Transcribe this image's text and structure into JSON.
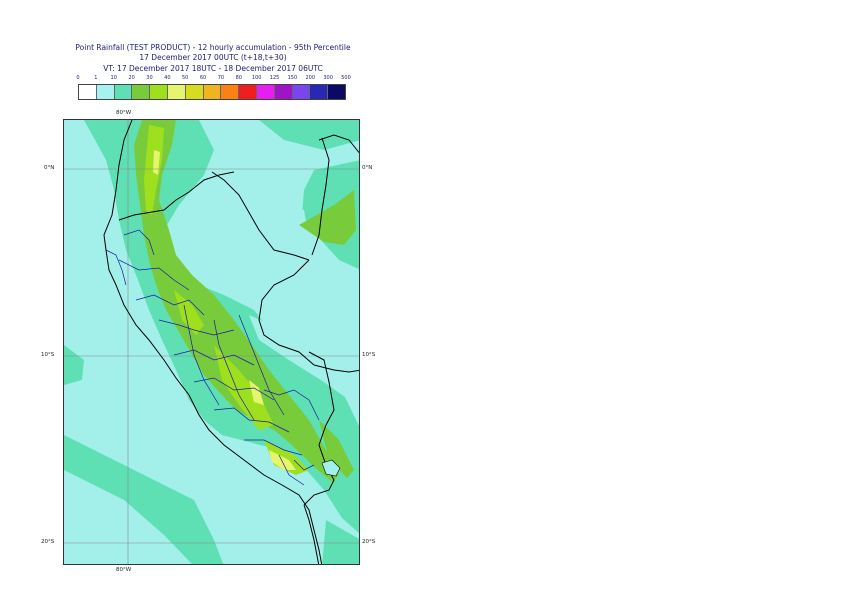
{
  "title": {
    "line1": "Point Rainfall (TEST PRODUCT) - 12 hourly accumulation - 95th Percentile",
    "line2": "17 December 2017 00UTC (t+18,t+30)",
    "line3": "VT: 17 December 2017 18UTC - 18 December 2017 06UTC"
  },
  "legend": {
    "thresholds": [
      "0",
      "1",
      "10",
      "20",
      "30",
      "40",
      "50",
      "60",
      "70",
      "80",
      "100",
      "125",
      "150",
      "200",
      "300",
      "500"
    ],
    "colors": [
      "#ffffff",
      "#a6f2f0",
      "#5fe0b4",
      "#78cc3c",
      "#9ee01e",
      "#e6f56e",
      "#d8dc1e",
      "#f0b41e",
      "#fa8214",
      "#f01e1e",
      "#e61ef0",
      "#a014c8",
      "#7846f0",
      "#2828b4",
      "#0a0a64"
    ]
  },
  "map": {
    "lon_labels": {
      "top": "80°W",
      "bottom": "80°W"
    },
    "lat_labels": {
      "eq_left": "0°N",
      "eq_right": "0°N",
      "s10_left": "10°S",
      "s10_right": "10°S",
      "s20_left": "20°S",
      "s20_right": "20°S"
    },
    "colors": {
      "ocean": "#a3f0eb",
      "wet": "#5fe0b4",
      "moderate": "#78cc3c",
      "heavy": "#9ee01e",
      "peak": "#e6f56e",
      "border": "#000000",
      "admin": "#1a1aa0",
      "grid": "#888888"
    }
  }
}
